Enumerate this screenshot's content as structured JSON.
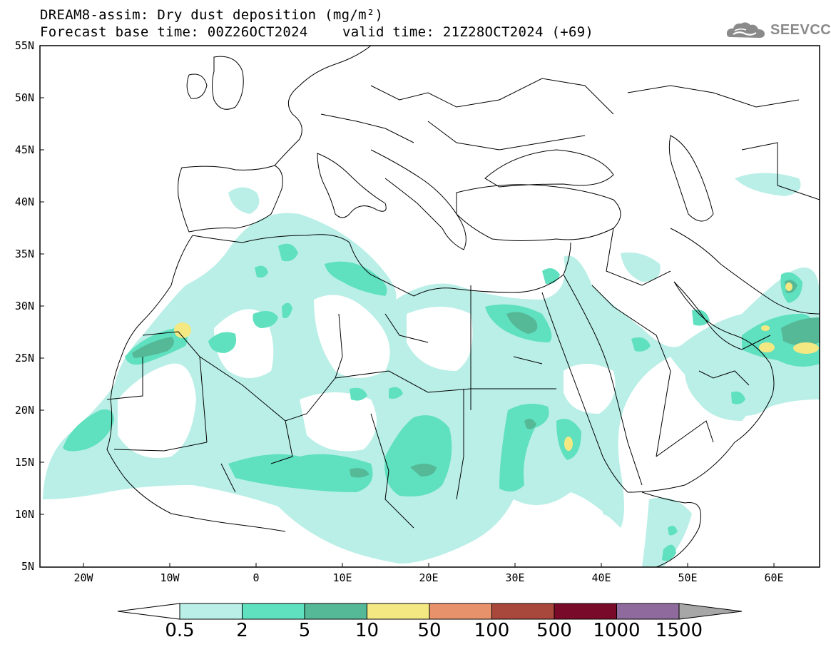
{
  "title": {
    "line1": "DREAM8-assim: Dry dust deposition (mg/m²)",
    "line2": "Forecast base time: 00Z26OCT2024",
    "line3": "valid time: 21Z28OCT2024 (+69)"
  },
  "logo": {
    "text": "SEEVCCC",
    "icon": "cloud-logo-icon"
  },
  "map": {
    "lat_labels": [
      "55N",
      "50N",
      "45N",
      "40N",
      "35N",
      "30N",
      "25N",
      "20N",
      "15N",
      "10N",
      "5N"
    ],
    "lon_labels": [
      "20W",
      "10W",
      "0",
      "10E",
      "20E",
      "30E",
      "40E",
      "50E",
      "60E"
    ],
    "lat_range": [
      5,
      55
    ],
    "lon_range": [
      -25,
      65
    ]
  },
  "colorbar": {
    "labels": [
      "0.5",
      "2",
      "5",
      "10",
      "50",
      "100",
      "500",
      "1000",
      "1500"
    ],
    "colors": [
      "#b9efe7",
      "#5fe0bf",
      "#55b896",
      "#f4e882",
      "#e8926b",
      "#a8483c",
      "#7a0a29",
      "#8f6a9c",
      "#a7a7a7"
    ]
  }
}
